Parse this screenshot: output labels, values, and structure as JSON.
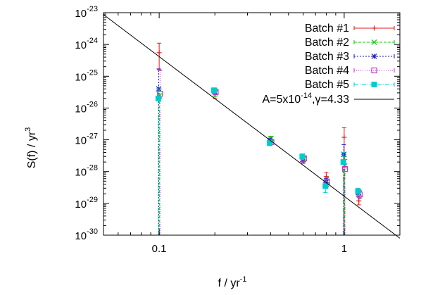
{
  "chart_data": {
    "type": "scatter",
    "title": "",
    "xlabel": "f / yr",
    "xlabel_sup": "-1",
    "ylabel": "S(f) / yr",
    "ylabel_sup": "3",
    "xscale": "log",
    "yscale": "log",
    "xlim": [
      0.05,
      2.0
    ],
    "ylim": [
      1e-30,
      1e-23
    ],
    "grid": false,
    "legend_position": "top-right",
    "x_ticks": [
      {
        "value": 0.1,
        "label": "0.1"
      },
      {
        "value": 1,
        "label": "1"
      }
    ],
    "y_ticks": [
      {
        "value": 1e-23,
        "base": "10",
        "exp": "-23"
      },
      {
        "value": 1e-24,
        "base": "10",
        "exp": "-24"
      },
      {
        "value": 1e-25,
        "base": "10",
        "exp": "-25"
      },
      {
        "value": 1e-26,
        "base": "10",
        "exp": "-26"
      },
      {
        "value": 1e-27,
        "base": "10",
        "exp": "-27"
      },
      {
        "value": 1e-28,
        "base": "10",
        "exp": "-28"
      },
      {
        "value": 1e-29,
        "base": "10",
        "exp": "-29"
      },
      {
        "value": 1e-30,
        "base": "10",
        "exp": "-30"
      }
    ],
    "series": [
      {
        "name": "Batch #1",
        "color": "#e41a1c",
        "marker": "plus",
        "dash": "",
        "points": [
          {
            "x": 0.1,
            "y": 5.5e-25,
            "ylo": 1.6e-25,
            "yhi": 1.1e-24
          },
          {
            "x": 0.2,
            "y": 2.8e-26,
            "ylo": 2e-26,
            "yhi": 3.5e-26
          },
          {
            "x": 0.4,
            "y": 9.5e-28,
            "ylo": 7.5e-28,
            "yhi": 1.2e-27
          },
          {
            "x": 0.6,
            "y": 2.2e-28,
            "ylo": 1.8e-28,
            "yhi": 2.6e-28
          },
          {
            "x": 0.8,
            "y": 7e-29,
            "ylo": 4.5e-29,
            "yhi": 9.5e-29
          },
          {
            "x": 1.0,
            "y": 1.2e-27,
            "ylo": 1e-30,
            "yhi": 2.4e-27
          },
          {
            "x": 1.2,
            "y": 1.2e-29,
            "ylo": 9e-30,
            "yhi": 1.6e-29
          }
        ]
      },
      {
        "name": "Batch #2",
        "color": "#00cc00",
        "marker": "cross",
        "dash": "4,2",
        "points": [
          {
            "x": 0.1,
            "y": 2.4e-26,
            "ylo": 1e-30,
            "yhi": 4e-26
          },
          {
            "x": 0.2,
            "y": 3e-26,
            "ylo": 2.3e-26,
            "yhi": 3.8e-26
          },
          {
            "x": 0.4,
            "y": 1.1e-27,
            "ylo": 9e-28,
            "yhi": 1.3e-27
          },
          {
            "x": 0.6,
            "y": 2.5e-28,
            "ylo": 2e-28,
            "yhi": 3e-28
          },
          {
            "x": 0.8,
            "y": 5e-29,
            "ylo": 3.5e-29,
            "yhi": 6.5e-29
          },
          {
            "x": 1.0,
            "y": 1.5e-28,
            "ylo": 1e-30,
            "yhi": 3e-28
          },
          {
            "x": 1.2,
            "y": 2e-29,
            "ylo": 1.5e-29,
            "yhi": 2.6e-29
          }
        ]
      },
      {
        "name": "Batch #3",
        "color": "#1a1acc",
        "marker": "star",
        "dash": "2,2",
        "points": [
          {
            "x": 0.1,
            "y": 4e-26,
            "ylo": 1e-30,
            "yhi": 1.7e-25
          },
          {
            "x": 0.2,
            "y": 3.5e-26,
            "ylo": 2.8e-26,
            "yhi": 4.2e-26
          },
          {
            "x": 0.4,
            "y": 9e-28,
            "ylo": 7.5e-28,
            "yhi": 1.1e-27
          },
          {
            "x": 0.6,
            "y": 2.4e-28,
            "ylo": 2e-28,
            "yhi": 2.9e-28
          },
          {
            "x": 0.8,
            "y": 4.5e-29,
            "ylo": 3e-29,
            "yhi": 6e-29
          },
          {
            "x": 1.0,
            "y": 3.5e-28,
            "ylo": 1e-30,
            "yhi": 7e-28
          },
          {
            "x": 1.2,
            "y": 2.2e-29,
            "ylo": 1.6e-29,
            "yhi": 2.8e-29
          }
        ]
      },
      {
        "name": "Batch #4",
        "color": "#cc33cc",
        "marker": "square",
        "dash": "1,2",
        "points": [
          {
            "x": 0.1,
            "y": 2.8e-26,
            "ylo": 1e-30,
            "yhi": 1.5e-25
          },
          {
            "x": 0.2,
            "y": 3.2e-26,
            "ylo": 2.6e-26,
            "yhi": 3.9e-26
          },
          {
            "x": 0.4,
            "y": 8.5e-28,
            "ylo": 7e-28,
            "yhi": 1e-27
          },
          {
            "x": 0.6,
            "y": 2.6e-28,
            "ylo": 2.1e-28,
            "yhi": 3.1e-28
          },
          {
            "x": 0.8,
            "y": 4.8e-29,
            "ylo": 3.3e-29,
            "yhi": 6.3e-29
          },
          {
            "x": 1.0,
            "y": 1.2e-28,
            "ylo": 1e-30,
            "yhi": 2.4e-28
          },
          {
            "x": 1.2,
            "y": 1.9e-29,
            "ylo": 1.4e-29,
            "yhi": 2.5e-29
          }
        ]
      },
      {
        "name": "Batch #5",
        "color": "#00cccc",
        "marker": "filled-square",
        "dash": "6,2,1,2",
        "points": [
          {
            "x": 0.1,
            "y": 2e-26,
            "ylo": 1e-30,
            "yhi": 4e-26
          },
          {
            "x": 0.2,
            "y": 3.6e-26,
            "ylo": 2.9e-26,
            "yhi": 4.3e-26
          },
          {
            "x": 0.4,
            "y": 8e-28,
            "ylo": 6.5e-28,
            "yhi": 9.5e-28
          },
          {
            "x": 0.6,
            "y": 3e-28,
            "ylo": 2.4e-28,
            "yhi": 3.6e-28
          },
          {
            "x": 0.8,
            "y": 3.5e-29,
            "ylo": 2.2e-29,
            "yhi": 4.8e-29
          },
          {
            "x": 1.0,
            "y": 2e-28,
            "ylo": 1e-30,
            "yhi": 4e-28
          },
          {
            "x": 1.2,
            "y": 2.4e-29,
            "ylo": 1.8e-29,
            "yhi": 3e-29
          }
        ]
      }
    ],
    "fit_line": {
      "label_prefix": "A=5x10",
      "label_exp": "-14",
      "label_suffix": ",γ=4.33",
      "color": "#000000",
      "x": [
        0.05,
        2.0
      ],
      "y": [
        8.7e-24,
        8e-31
      ]
    }
  }
}
